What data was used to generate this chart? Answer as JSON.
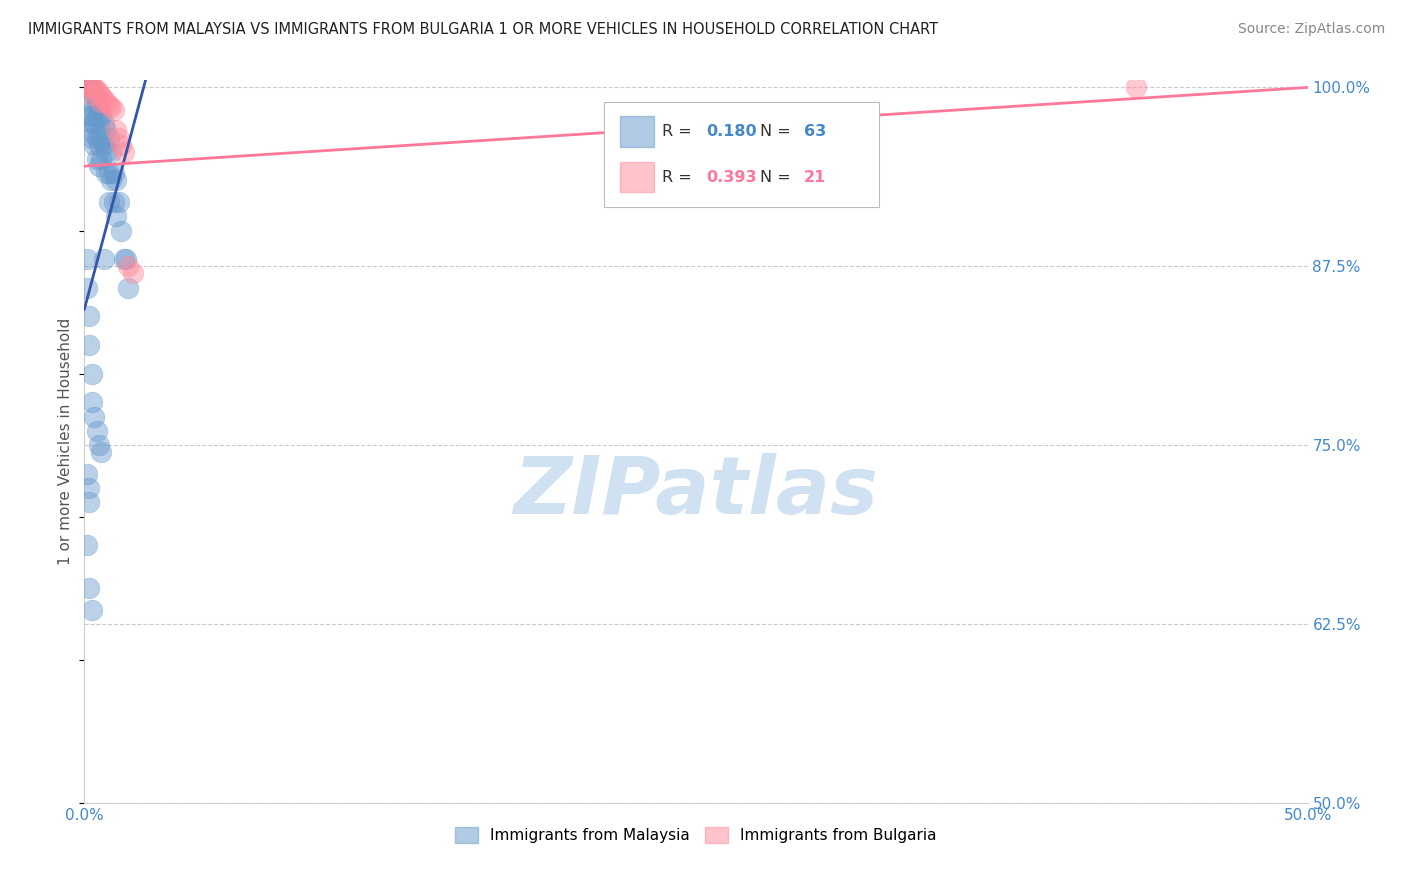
{
  "title": "IMMIGRANTS FROM MALAYSIA VS IMMIGRANTS FROM BULGARIA 1 OR MORE VEHICLES IN HOUSEHOLD CORRELATION CHART",
  "source": "Source: ZipAtlas.com",
  "ylabel": "1 or more Vehicles in Household",
  "xlim": [
    0.0,
    0.5
  ],
  "ylim": [
    0.5,
    1.005
  ],
  "ytick_positions": [
    0.5,
    0.625,
    0.75,
    0.875,
    1.0
  ],
  "yticklabels_right": [
    "50.0%",
    "62.5%",
    "75.0%",
    "87.5%",
    "100.0%"
  ],
  "malaysia_R": 0.18,
  "malaysia_N": 63,
  "bulgaria_R": 0.393,
  "bulgaria_N": 21,
  "malaysia_color": "#6699CC",
  "bulgaria_color": "#FF8899",
  "malaysia_line_color": "#3355AA",
  "bulgaria_line_color": "#FF7799",
  "malaysia_line": [
    [
      0.0,
      0.025
    ],
    [
      0.845,
      1.005
    ]
  ],
  "bulgaria_line": [
    [
      0.0,
      0.5
    ],
    [
      0.945,
      1.0
    ]
  ],
  "watermark_text": "ZIPatlas",
  "watermark_color": "#c8dcf0",
  "malaysia_scatter_x": [
    0.001,
    0.001,
    0.002,
    0.002,
    0.002,
    0.002,
    0.002,
    0.003,
    0.003,
    0.003,
    0.003,
    0.003,
    0.004,
    0.004,
    0.004,
    0.004,
    0.005,
    0.005,
    0.005,
    0.005,
    0.006,
    0.006,
    0.006,
    0.006,
    0.007,
    0.007,
    0.007,
    0.008,
    0.008,
    0.008,
    0.009,
    0.009,
    0.009,
    0.01,
    0.01,
    0.01,
    0.011,
    0.011,
    0.012,
    0.012,
    0.013,
    0.013,
    0.014,
    0.015,
    0.016,
    0.017,
    0.018,
    0.001,
    0.001,
    0.002,
    0.002,
    0.003,
    0.003,
    0.004,
    0.005,
    0.006,
    0.007,
    0.001,
    0.002,
    0.002,
    0.001,
    0.002,
    0.003
  ],
  "malaysia_scatter_y": [
    1.0,
    1.0,
    1.0,
    1.0,
    1.0,
    0.98,
    0.97,
    1.0,
    0.99,
    0.98,
    0.975,
    0.965,
    0.995,
    0.985,
    0.975,
    0.96,
    0.99,
    0.98,
    0.965,
    0.95,
    0.985,
    0.975,
    0.96,
    0.945,
    0.98,
    0.965,
    0.95,
    0.975,
    0.96,
    0.88,
    0.97,
    0.955,
    0.94,
    0.965,
    0.94,
    0.92,
    0.955,
    0.935,
    0.94,
    0.92,
    0.935,
    0.91,
    0.92,
    0.9,
    0.88,
    0.88,
    0.86,
    0.88,
    0.86,
    0.84,
    0.82,
    0.8,
    0.78,
    0.77,
    0.76,
    0.75,
    0.745,
    0.73,
    0.72,
    0.71,
    0.68,
    0.65,
    0.635
  ],
  "bulgaria_scatter_x": [
    0.001,
    0.002,
    0.003,
    0.003,
    0.004,
    0.005,
    0.006,
    0.007,
    0.007,
    0.008,
    0.009,
    0.01,
    0.011,
    0.012,
    0.013,
    0.014,
    0.015,
    0.016,
    0.018,
    0.02,
    0.43
  ],
  "bulgaria_scatter_y": [
    1.0,
    1.0,
    1.0,
    0.995,
    1.0,
    0.998,
    0.996,
    0.994,
    0.99,
    0.992,
    0.99,
    0.988,
    0.986,
    0.984,
    0.97,
    0.965,
    0.96,
    0.955,
    0.875,
    0.87,
    1.0
  ]
}
